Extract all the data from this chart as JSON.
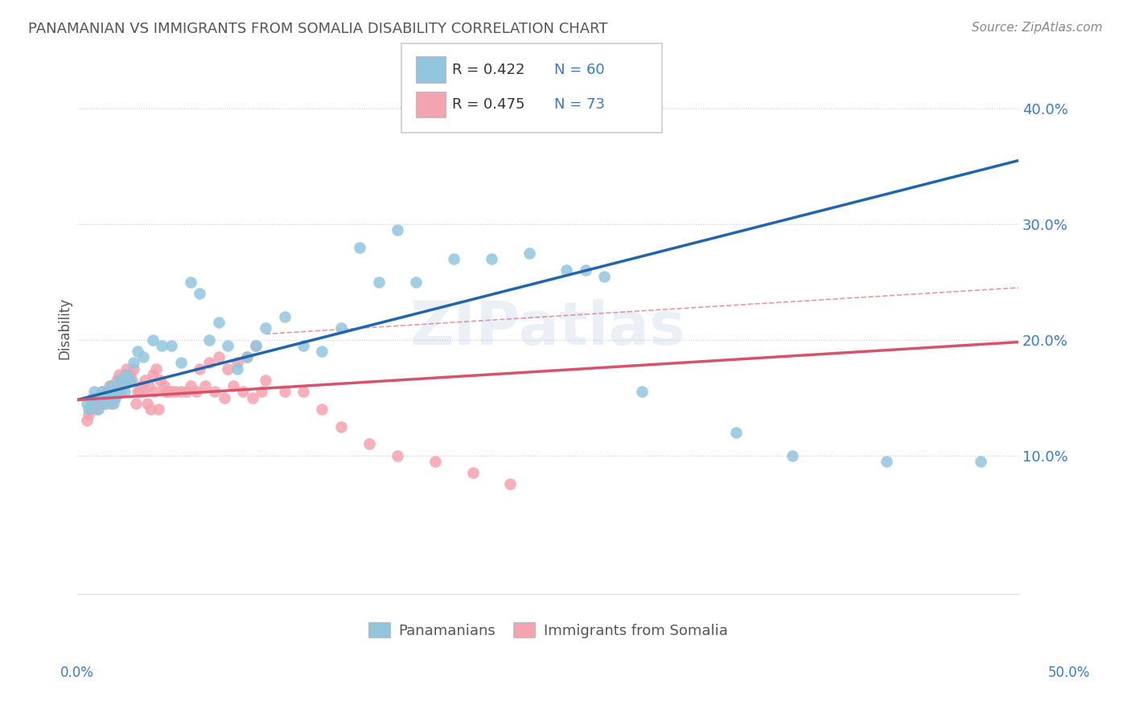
{
  "title": "PANAMANIAN VS IMMIGRANTS FROM SOMALIA DISABILITY CORRELATION CHART",
  "source_text": "Source: ZipAtlas.com",
  "ylabel": "Disability",
  "xlim": [
    0.0,
    0.5
  ],
  "ylim": [
    -0.02,
    0.44
  ],
  "blue_color": "#92c5de",
  "pink_color": "#f4a3b0",
  "blue_line_color": "#2166ac",
  "pink_line_color": "#d6536b",
  "dash_line_color": "#d6536b",
  "legend_text_color": "#3a7abf",
  "title_color": "#555555",
  "blue_line_x0": 0.0,
  "blue_line_y0": 0.148,
  "blue_line_x1": 0.5,
  "blue_line_y1": 0.355,
  "pink_line_x0": 0.0,
  "pink_line_y0": 0.148,
  "pink_line_x1": 0.5,
  "pink_line_y1": 0.198,
  "dash_line_x0": 0.1,
  "dash_line_y0": 0.205,
  "dash_line_x1": 0.5,
  "dash_line_y1": 0.245,
  "blue_scatter_x": [
    0.025,
    0.035,
    0.045,
    0.06,
    0.07,
    0.08,
    0.09,
    0.005,
    0.006,
    0.007,
    0.008,
    0.009,
    0.01,
    0.011,
    0.012,
    0.013,
    0.014,
    0.015,
    0.016,
    0.017,
    0.018,
    0.019,
    0.02,
    0.021,
    0.022,
    0.023,
    0.024,
    0.026,
    0.027,
    0.028,
    0.03,
    0.032,
    0.04,
    0.05,
    0.055,
    0.065,
    0.075,
    0.16,
    0.18,
    0.2,
    0.22,
    0.24,
    0.26,
    0.27,
    0.28,
    0.15,
    0.17,
    0.3,
    0.35,
    0.38,
    0.43,
    0.48,
    0.12,
    0.13,
    0.14,
    0.1,
    0.11,
    0.085,
    0.095
  ],
  "blue_scatter_y": [
    0.155,
    0.185,
    0.195,
    0.25,
    0.2,
    0.195,
    0.185,
    0.145,
    0.14,
    0.145,
    0.15,
    0.155,
    0.15,
    0.14,
    0.15,
    0.155,
    0.15,
    0.145,
    0.155,
    0.155,
    0.16,
    0.145,
    0.15,
    0.155,
    0.165,
    0.155,
    0.165,
    0.17,
    0.165,
    0.165,
    0.18,
    0.19,
    0.2,
    0.195,
    0.18,
    0.24,
    0.215,
    0.25,
    0.25,
    0.27,
    0.27,
    0.275,
    0.26,
    0.26,
    0.255,
    0.28,
    0.295,
    0.155,
    0.12,
    0.1,
    0.095,
    0.095,
    0.195,
    0.19,
    0.21,
    0.21,
    0.22,
    0.175,
    0.195
  ],
  "pink_scatter_x": [
    0.005,
    0.006,
    0.007,
    0.008,
    0.009,
    0.01,
    0.011,
    0.012,
    0.013,
    0.014,
    0.015,
    0.016,
    0.017,
    0.018,
    0.019,
    0.02,
    0.021,
    0.022,
    0.023,
    0.024,
    0.025,
    0.026,
    0.027,
    0.028,
    0.03,
    0.032,
    0.034,
    0.036,
    0.038,
    0.04,
    0.042,
    0.044,
    0.046,
    0.048,
    0.05,
    0.055,
    0.06,
    0.065,
    0.07,
    0.075,
    0.08,
    0.085,
    0.09,
    0.095,
    0.1,
    0.11,
    0.12,
    0.13,
    0.14,
    0.155,
    0.17,
    0.19,
    0.21,
    0.23,
    0.035,
    0.029,
    0.031,
    0.033,
    0.037,
    0.039,
    0.041,
    0.043,
    0.047,
    0.052,
    0.058,
    0.063,
    0.068,
    0.073,
    0.078,
    0.083,
    0.088,
    0.093,
    0.098
  ],
  "pink_scatter_y": [
    0.13,
    0.135,
    0.14,
    0.14,
    0.145,
    0.14,
    0.15,
    0.145,
    0.155,
    0.15,
    0.145,
    0.15,
    0.16,
    0.145,
    0.155,
    0.15,
    0.165,
    0.17,
    0.16,
    0.165,
    0.17,
    0.175,
    0.165,
    0.17,
    0.175,
    0.155,
    0.16,
    0.165,
    0.16,
    0.17,
    0.175,
    0.165,
    0.16,
    0.155,
    0.155,
    0.155,
    0.16,
    0.175,
    0.18,
    0.185,
    0.175,
    0.18,
    0.185,
    0.195,
    0.165,
    0.155,
    0.155,
    0.14,
    0.125,
    0.11,
    0.1,
    0.095,
    0.085,
    0.075,
    0.155,
    0.165,
    0.145,
    0.155,
    0.145,
    0.14,
    0.155,
    0.14,
    0.155,
    0.155,
    0.155,
    0.155,
    0.16,
    0.155,
    0.15,
    0.16,
    0.155,
    0.15,
    0.155
  ]
}
